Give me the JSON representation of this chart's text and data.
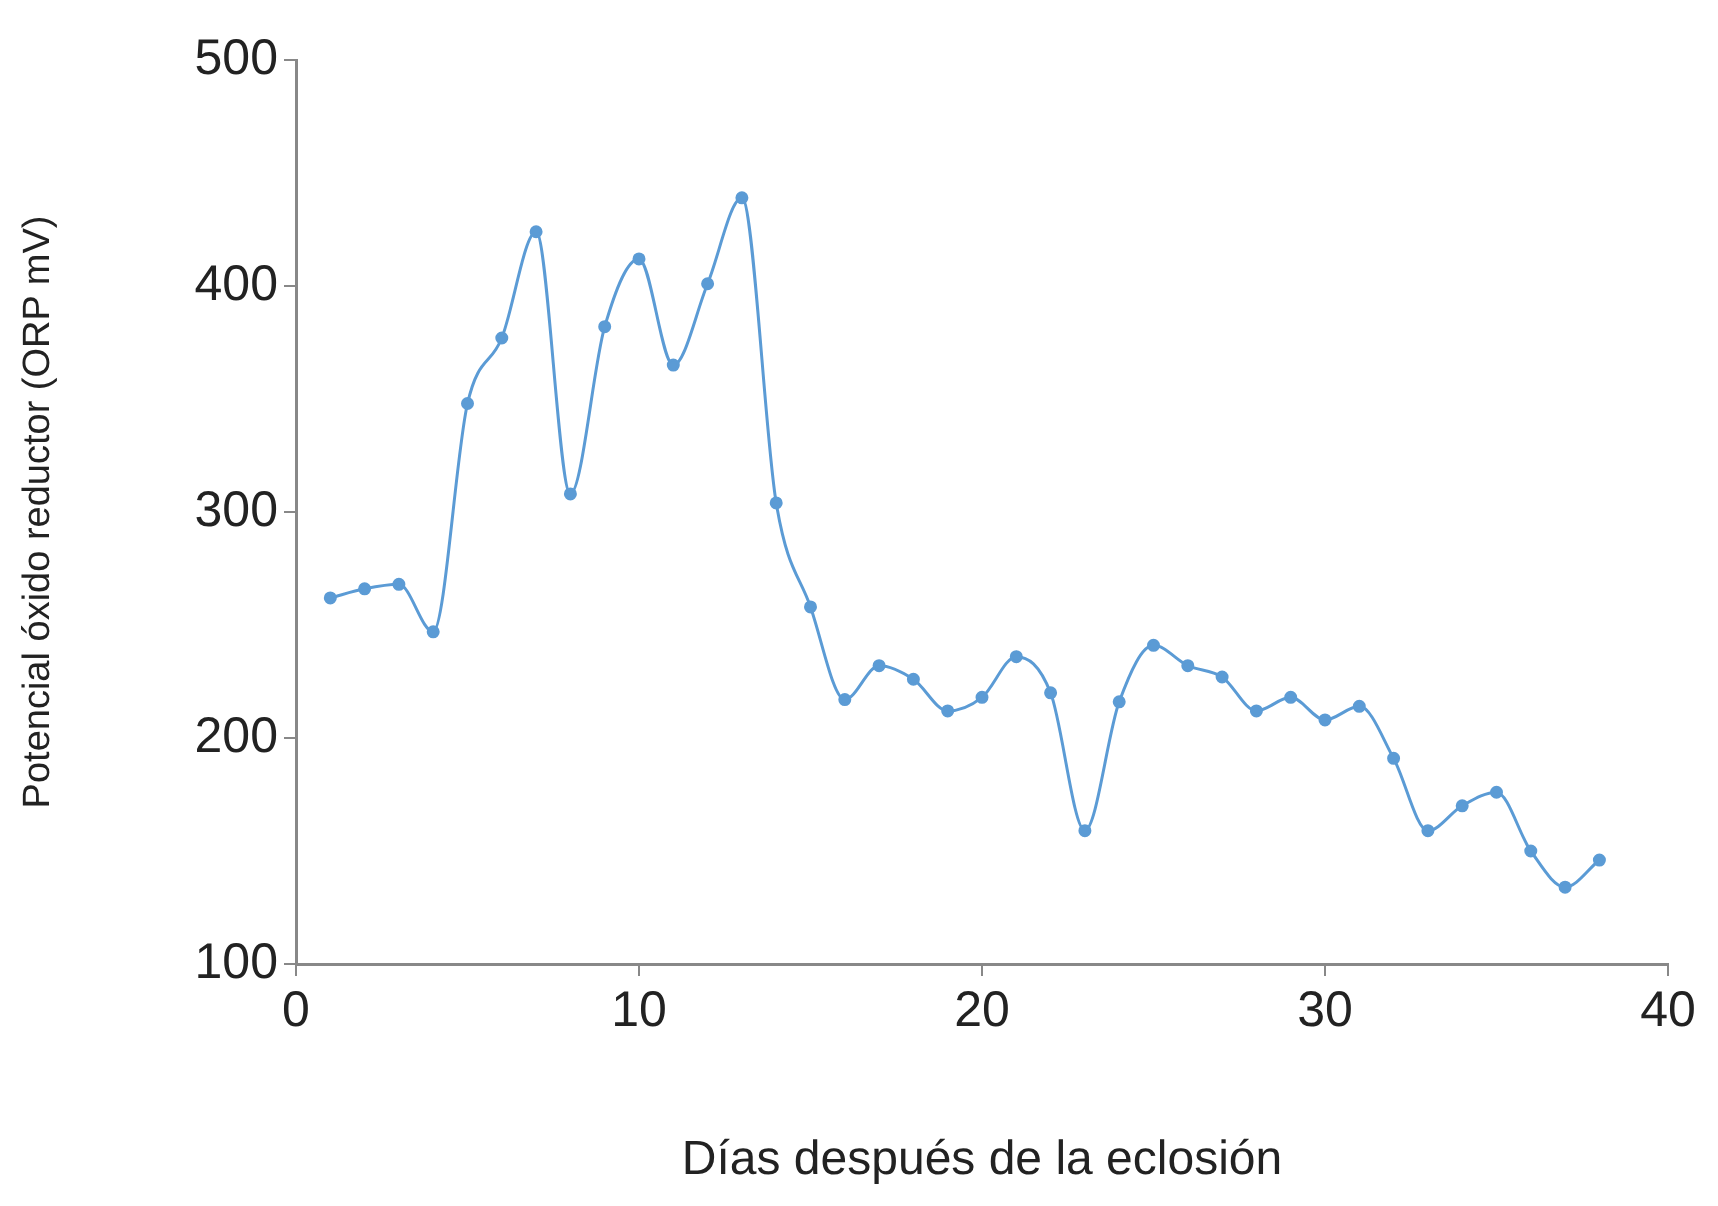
{
  "chart_data": {
    "type": "line",
    "xlabel": "Días después de la eclosión",
    "ylabel": "Potencial óxido reductor (ORP mV)",
    "x": [
      1,
      2,
      3,
      4,
      5,
      6,
      7,
      8,
      9,
      10,
      11,
      12,
      13,
      14,
      15,
      16,
      17,
      18,
      19,
      20,
      21,
      22,
      23,
      24,
      25,
      26,
      27,
      28,
      29,
      30,
      31,
      32,
      33,
      34,
      35,
      36,
      37,
      38
    ],
    "series": [
      {
        "color": "#5b9bd5",
        "values": [
          262,
          266,
          268,
          247,
          348,
          377,
          424,
          308,
          382,
          412,
          365,
          401,
          439,
          304,
          258,
          217,
          232,
          226,
          212,
          218,
          236,
          220,
          159,
          216,
          241,
          232,
          227,
          212,
          218,
          208,
          214,
          191,
          159,
          170,
          176,
          150,
          134,
          146
        ]
      }
    ],
    "xlim": [
      0,
      40
    ],
    "xticks": [
      0,
      10,
      20,
      30,
      40
    ],
    "ylim": [
      100,
      500
    ],
    "yticks": [
      100,
      200,
      300,
      400,
      500
    ],
    "grid": false,
    "legend": false,
    "marker": "circle",
    "line_style": "solid"
  }
}
